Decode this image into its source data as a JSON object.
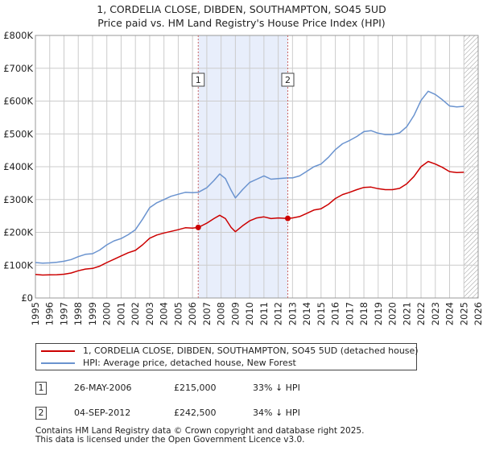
{
  "title_line1": "1, CORDELIA CLOSE, DIBDEN, SOUTHAMPTON, SO45 5UD",
  "title_line2": "Price paid vs. HM Land Registry's House Price Index (HPI)",
  "colors": {
    "property": "#cc0000",
    "hpi": "#6a93cf",
    "shade": "#e8eefb",
    "grid": "#cccccc",
    "event": "#cc6666"
  },
  "chart_data": {
    "type": "line",
    "title": "1, CORDELIA CLOSE, DIBDEN, SOUTHAMPTON, SO45 5UD — Price paid vs. HM Land Registry's House Price Index (HPI)",
    "xlabel": "",
    "ylabel": "",
    "xlim": [
      1995,
      2026
    ],
    "ylim": [
      0,
      800000
    ],
    "x_ticks": [
      "1995",
      "1996",
      "1997",
      "1998",
      "1999",
      "2000",
      "2001",
      "2002",
      "2003",
      "2004",
      "2005",
      "2006",
      "2007",
      "2008",
      "2009",
      "2010",
      "2011",
      "2012",
      "2013",
      "2014",
      "2015",
      "2016",
      "2017",
      "2018",
      "2019",
      "2020",
      "2021",
      "2022",
      "2023",
      "2024",
      "2025",
      "2026"
    ],
    "y_ticks": [
      {
        "value": 0,
        "label": "£0"
      },
      {
        "value": 100000,
        "label": "£100K"
      },
      {
        "value": 200000,
        "label": "£200K"
      },
      {
        "value": 300000,
        "label": "£300K"
      },
      {
        "value": 400000,
        "label": "£400K"
      },
      {
        "value": 500000,
        "label": "£500K"
      },
      {
        "value": 600000,
        "label": "£600K"
      },
      {
        "value": 700000,
        "label": "£700K"
      },
      {
        "value": 800000,
        "label": "£800K"
      }
    ],
    "grid": true,
    "shaded_range": [
      2006.4,
      2012.67
    ],
    "future_hatch_from": 2025.0,
    "series": [
      {
        "name": "1, CORDELIA CLOSE, DIBDEN, SOUTHAMPTON, SO45 5UD (detached house)",
        "color_key": "property",
        "points": [
          [
            1995.0,
            72000
          ],
          [
            1995.5,
            70000
          ],
          [
            1996.0,
            70500
          ],
          [
            1996.5,
            71000
          ],
          [
            1997.0,
            72500
          ],
          [
            1997.5,
            76000
          ],
          [
            1998.0,
            83000
          ],
          [
            1998.5,
            88000
          ],
          [
            1999.0,
            90000
          ],
          [
            1999.5,
            97000
          ],
          [
            2000.0,
            108000
          ],
          [
            2000.5,
            118000
          ],
          [
            2001.0,
            128000
          ],
          [
            2001.5,
            138000
          ],
          [
            2002.0,
            145000
          ],
          [
            2002.5,
            162000
          ],
          [
            2003.0,
            182000
          ],
          [
            2003.5,
            192000
          ],
          [
            2004.0,
            198000
          ],
          [
            2004.5,
            203000
          ],
          [
            2005.0,
            208000
          ],
          [
            2005.5,
            214000
          ],
          [
            2006.0,
            213000
          ],
          [
            2006.4,
            215000
          ],
          [
            2007.0,
            228000
          ],
          [
            2007.5,
            242000
          ],
          [
            2007.9,
            252000
          ],
          [
            2008.3,
            242000
          ],
          [
            2008.7,
            215000
          ],
          [
            2009.0,
            202000
          ],
          [
            2009.5,
            220000
          ],
          [
            2010.0,
            235000
          ],
          [
            2010.5,
            244000
          ],
          [
            2011.0,
            247000
          ],
          [
            2011.5,
            242000
          ],
          [
            2012.0,
            244000
          ],
          [
            2012.67,
            242500
          ],
          [
            2013.0,
            244000
          ],
          [
            2013.5,
            248000
          ],
          [
            2014.0,
            258000
          ],
          [
            2014.5,
            268000
          ],
          [
            2015.0,
            272000
          ],
          [
            2015.5,
            285000
          ],
          [
            2016.0,
            303000
          ],
          [
            2016.5,
            315000
          ],
          [
            2017.0,
            322000
          ],
          [
            2017.5,
            330000
          ],
          [
            2018.0,
            337000
          ],
          [
            2018.5,
            338000
          ],
          [
            2019.0,
            333000
          ],
          [
            2019.5,
            330000
          ],
          [
            2020.0,
            330000
          ],
          [
            2020.5,
            334000
          ],
          [
            2021.0,
            348000
          ],
          [
            2021.5,
            370000
          ],
          [
            2022.0,
            400000
          ],
          [
            2022.5,
            416000
          ],
          [
            2023.0,
            408000
          ],
          [
            2023.5,
            398000
          ],
          [
            2024.0,
            385000
          ],
          [
            2024.5,
            382000
          ],
          [
            2025.0,
            383000
          ]
        ]
      },
      {
        "name": "HPI: Average price, detached house, New Forest",
        "color_key": "hpi",
        "points": [
          [
            1995.0,
            108000
          ],
          [
            1995.5,
            106000
          ],
          [
            1996.0,
            107000
          ],
          [
            1996.5,
            109000
          ],
          [
            1997.0,
            112000
          ],
          [
            1997.5,
            117000
          ],
          [
            1998.0,
            126000
          ],
          [
            1998.5,
            133000
          ],
          [
            1999.0,
            135000
          ],
          [
            1999.5,
            146000
          ],
          [
            2000.0,
            162000
          ],
          [
            2000.5,
            174000
          ],
          [
            2001.0,
            181000
          ],
          [
            2001.5,
            193000
          ],
          [
            2002.0,
            208000
          ],
          [
            2002.5,
            240000
          ],
          [
            2003.0,
            275000
          ],
          [
            2003.5,
            290000
          ],
          [
            2004.0,
            300000
          ],
          [
            2004.5,
            310000
          ],
          [
            2005.0,
            316000
          ],
          [
            2005.5,
            322000
          ],
          [
            2006.0,
            321000
          ],
          [
            2006.4,
            322000
          ],
          [
            2007.0,
            336000
          ],
          [
            2007.5,
            358000
          ],
          [
            2007.9,
            378000
          ],
          [
            2008.3,
            364000
          ],
          [
            2008.7,
            328000
          ],
          [
            2009.0,
            305000
          ],
          [
            2009.5,
            330000
          ],
          [
            2010.0,
            352000
          ],
          [
            2010.5,
            362000
          ],
          [
            2011.0,
            372000
          ],
          [
            2011.5,
            362000
          ],
          [
            2012.0,
            364000
          ],
          [
            2012.67,
            366000
          ],
          [
            2013.0,
            366000
          ],
          [
            2013.5,
            372000
          ],
          [
            2014.0,
            386000
          ],
          [
            2014.5,
            400000
          ],
          [
            2015.0,
            408000
          ],
          [
            2015.5,
            428000
          ],
          [
            2016.0,
            452000
          ],
          [
            2016.5,
            470000
          ],
          [
            2017.0,
            480000
          ],
          [
            2017.5,
            492000
          ],
          [
            2018.0,
            507000
          ],
          [
            2018.5,
            510000
          ],
          [
            2019.0,
            502000
          ],
          [
            2019.5,
            498000
          ],
          [
            2020.0,
            498000
          ],
          [
            2020.5,
            503000
          ],
          [
            2021.0,
            522000
          ],
          [
            2021.5,
            556000
          ],
          [
            2022.0,
            602000
          ],
          [
            2022.5,
            630000
          ],
          [
            2023.0,
            620000
          ],
          [
            2023.5,
            604000
          ],
          [
            2024.0,
            585000
          ],
          [
            2024.5,
            582000
          ],
          [
            2025.0,
            584000
          ]
        ]
      }
    ],
    "sales": [
      {
        "id": "1",
        "x": 2006.4,
        "y": 215000
      },
      {
        "id": "2",
        "x": 2012.67,
        "y": 242500
      }
    ],
    "legend": {
      "property_label": "1, CORDELIA CLOSE, DIBDEN, SOUTHAMPTON, SO45 5UD (detached house)",
      "hpi_label": "HPI: Average price, detached house, New Forest"
    }
  },
  "sales_table": [
    {
      "id": "1",
      "date": "26-MAY-2006",
      "price": "£215,000",
      "hpi": "33% ↓ HPI"
    },
    {
      "id": "2",
      "date": "04-SEP-2012",
      "price": "£242,500",
      "hpi": "34% ↓ HPI"
    }
  ],
  "footer_line1": "Contains HM Land Registry data © Crown copyright and database right 2025.",
  "footer_line2": "This data is licensed under the Open Government Licence v3.0."
}
